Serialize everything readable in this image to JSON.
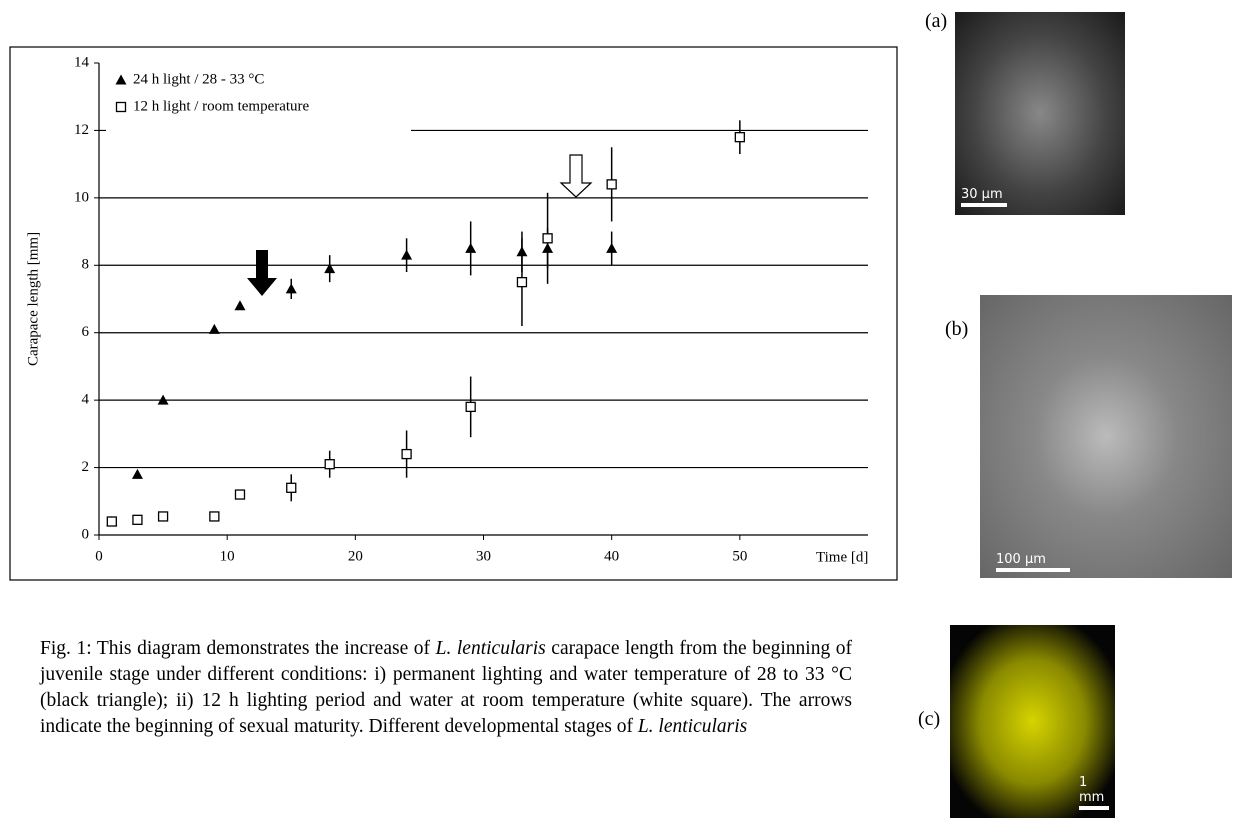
{
  "chart_data": {
    "type": "scatter",
    "x_label": "Time [d]",
    "y_label": "Carapace length [mm]",
    "xlim": [
      0,
      60
    ],
    "ylim": [
      0,
      14
    ],
    "xticks": [
      0,
      10,
      20,
      30,
      40,
      50
    ],
    "yticks": [
      0,
      2,
      4,
      6,
      8,
      10,
      12,
      14
    ],
    "grid": true,
    "legend": "top-left",
    "series": [
      {
        "name": "24 h light / 28 - 33 °C",
        "marker": "triangle",
        "color": "#000000",
        "x": [
          1,
          3,
          5,
          9,
          11,
          15,
          18,
          24,
          29,
          33,
          35,
          40
        ],
        "values": [
          0.4,
          1.8,
          4.0,
          6.1,
          6.8,
          7.3,
          7.9,
          8.3,
          8.5,
          8.4,
          8.5,
          8.5
        ],
        "errors": [
          null,
          null,
          null,
          null,
          null,
          0.3,
          0.4,
          0.5,
          0.8,
          0.6,
          0.6,
          0.5
        ]
      },
      {
        "name": "12 h light / room temperature",
        "marker": "square",
        "color": "#000000",
        "x": [
          1,
          3,
          5,
          9,
          11,
          15,
          18,
          24,
          29,
          33,
          35,
          40,
          50
        ],
        "values": [
          0.4,
          0.45,
          0.55,
          0.55,
          1.2,
          1.4,
          2.1,
          2.4,
          3.8,
          7.5,
          8.8,
          10.4,
          11.8
        ],
        "errors": [
          null,
          null,
          null,
          null,
          null,
          0.4,
          0.4,
          0.7,
          0.9,
          1.3,
          1.35,
          1.1,
          0.5
        ]
      }
    ]
  },
  "figure": {
    "caption": [
      "Fig. 1: This diagram demonstrates the increase of ",
      "L. lenticularis",
      " carapace length from the beginning of juvenile stage under different conditions: i) permanent lighting and water temperature of 28 to 33 °C (black triangle); ii) 12 h lighting period and water at room temperature (white square). The arrows indicate the beginning of sexual maturity. Different developmental stages of ",
      "L. lenticularis"
    ],
    "panels": [
      {
        "label": "(a)",
        "scale": "30 µm"
      },
      {
        "label": "(b)",
        "scale": "100 µm"
      },
      {
        "label": "(c)",
        "scale": "1 mm"
      }
    ]
  }
}
